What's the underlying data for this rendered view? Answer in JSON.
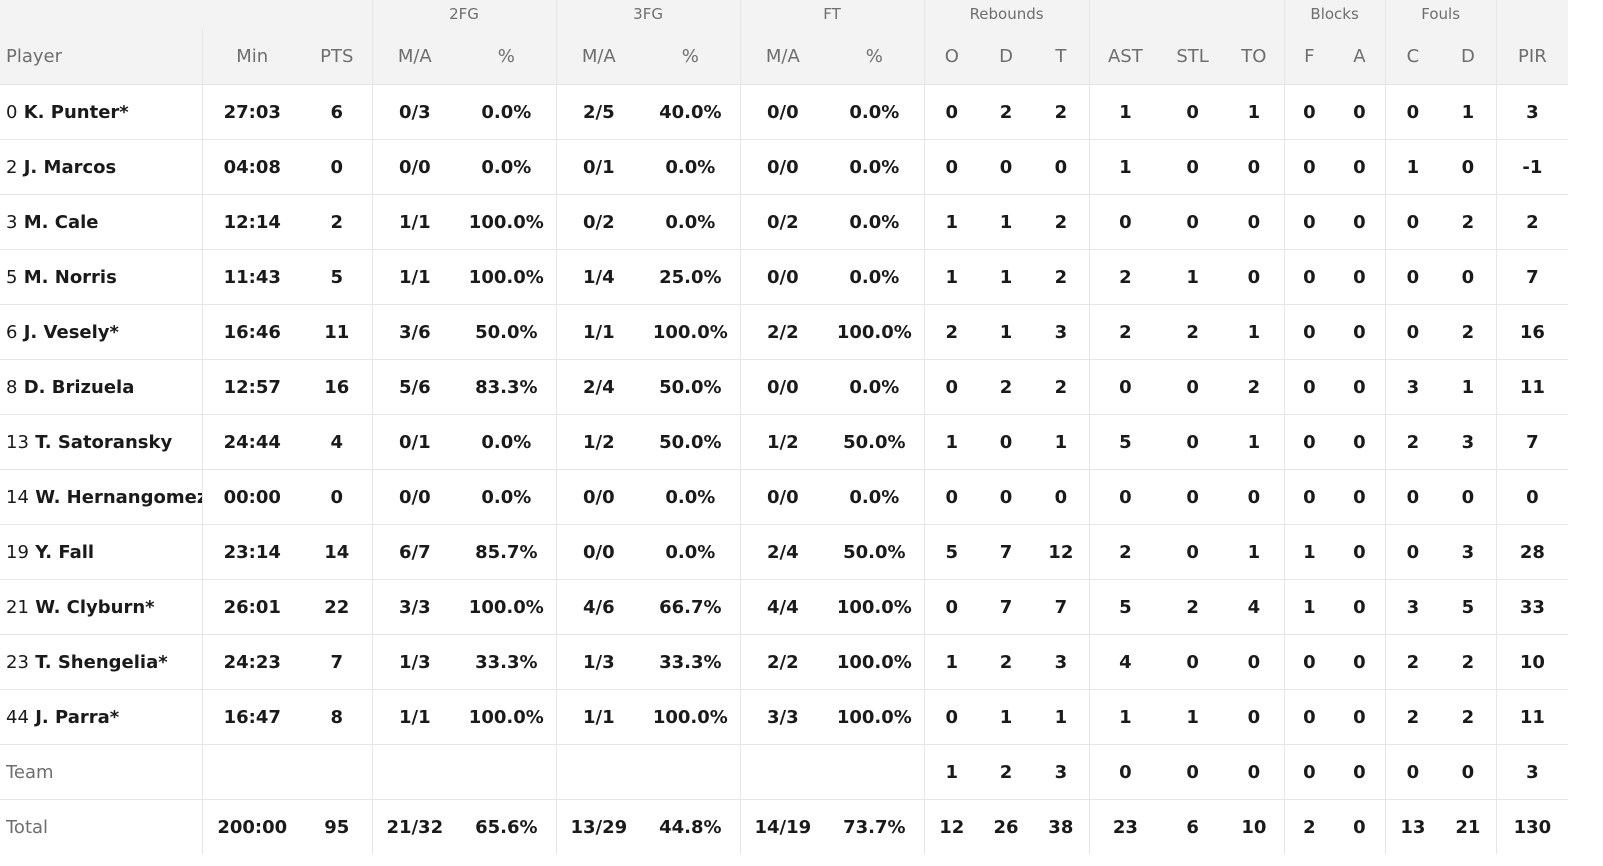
{
  "groups": {
    "fg2": "2FG",
    "fg3": "3FG",
    "ft": "FT",
    "rebounds": "Rebounds",
    "blocks": "Blocks",
    "fouls": "Fouls"
  },
  "headers": {
    "player": "Player",
    "min": "Min",
    "pts": "PTS",
    "fg2_ma": "M/A",
    "fg2_pct": "%",
    "fg3_ma": "M/A",
    "fg3_pct": "%",
    "ft_ma": "M/A",
    "ft_pct": "%",
    "reb_o": "O",
    "reb_d": "D",
    "reb_t": "T",
    "ast": "AST",
    "stl": "STL",
    "to": "TO",
    "blk_f": "F",
    "blk_a": "A",
    "foul_c": "C",
    "foul_d": "D",
    "pir": "PIR"
  },
  "rows": [
    {
      "num": "0",
      "name": "K. Punter*",
      "min": "27:03",
      "pts": "6",
      "fg2_ma": "0/3",
      "fg2_pct": "0.0%",
      "fg3_ma": "2/5",
      "fg3_pct": "40.0%",
      "ft_ma": "0/0",
      "ft_pct": "0.0%",
      "reb_o": "0",
      "reb_d": "2",
      "reb_t": "2",
      "ast": "1",
      "stl": "0",
      "to": "1",
      "blk_f": "0",
      "blk_a": "0",
      "foul_c": "0",
      "foul_d": "1",
      "pir": "3"
    },
    {
      "num": "2",
      "name": "J. Marcos",
      "min": "04:08",
      "pts": "0",
      "fg2_ma": "0/0",
      "fg2_pct": "0.0%",
      "fg3_ma": "0/1",
      "fg3_pct": "0.0%",
      "ft_ma": "0/0",
      "ft_pct": "0.0%",
      "reb_o": "0",
      "reb_d": "0",
      "reb_t": "0",
      "ast": "1",
      "stl": "0",
      "to": "0",
      "blk_f": "0",
      "blk_a": "0",
      "foul_c": "1",
      "foul_d": "0",
      "pir": "-1"
    },
    {
      "num": "3",
      "name": "M. Cale",
      "min": "12:14",
      "pts": "2",
      "fg2_ma": "1/1",
      "fg2_pct": "100.0%",
      "fg3_ma": "0/2",
      "fg3_pct": "0.0%",
      "ft_ma": "0/2",
      "ft_pct": "0.0%",
      "reb_o": "1",
      "reb_d": "1",
      "reb_t": "2",
      "ast": "0",
      "stl": "0",
      "to": "0",
      "blk_f": "0",
      "blk_a": "0",
      "foul_c": "0",
      "foul_d": "2",
      "pir": "2"
    },
    {
      "num": "5",
      "name": "M. Norris",
      "min": "11:43",
      "pts": "5",
      "fg2_ma": "1/1",
      "fg2_pct": "100.0%",
      "fg3_ma": "1/4",
      "fg3_pct": "25.0%",
      "ft_ma": "0/0",
      "ft_pct": "0.0%",
      "reb_o": "1",
      "reb_d": "1",
      "reb_t": "2",
      "ast": "2",
      "stl": "1",
      "to": "0",
      "blk_f": "0",
      "blk_a": "0",
      "foul_c": "0",
      "foul_d": "0",
      "pir": "7"
    },
    {
      "num": "6",
      "name": "J. Vesely*",
      "min": "16:46",
      "pts": "11",
      "fg2_ma": "3/6",
      "fg2_pct": "50.0%",
      "fg3_ma": "1/1",
      "fg3_pct": "100.0%",
      "ft_ma": "2/2",
      "ft_pct": "100.0%",
      "reb_o": "2",
      "reb_d": "1",
      "reb_t": "3",
      "ast": "2",
      "stl": "2",
      "to": "1",
      "blk_f": "0",
      "blk_a": "0",
      "foul_c": "0",
      "foul_d": "2",
      "pir": "16"
    },
    {
      "num": "8",
      "name": "D. Brizuela",
      "min": "12:57",
      "pts": "16",
      "fg2_ma": "5/6",
      "fg2_pct": "83.3%",
      "fg3_ma": "2/4",
      "fg3_pct": "50.0%",
      "ft_ma": "0/0",
      "ft_pct": "0.0%",
      "reb_o": "0",
      "reb_d": "2",
      "reb_t": "2",
      "ast": "0",
      "stl": "0",
      "to": "2",
      "blk_f": "0",
      "blk_a": "0",
      "foul_c": "3",
      "foul_d": "1",
      "pir": "11"
    },
    {
      "num": "13",
      "name": "T. Satoransky",
      "min": "24:44",
      "pts": "4",
      "fg2_ma": "0/1",
      "fg2_pct": "0.0%",
      "fg3_ma": "1/2",
      "fg3_pct": "50.0%",
      "ft_ma": "1/2",
      "ft_pct": "50.0%",
      "reb_o": "1",
      "reb_d": "0",
      "reb_t": "1",
      "ast": "5",
      "stl": "0",
      "to": "1",
      "blk_f": "0",
      "blk_a": "0",
      "foul_c": "2",
      "foul_d": "3",
      "pir": "7"
    },
    {
      "num": "14",
      "name": "W. Hernangomez",
      "min": "00:00",
      "pts": "0",
      "fg2_ma": "0/0",
      "fg2_pct": "0.0%",
      "fg3_ma": "0/0",
      "fg3_pct": "0.0%",
      "ft_ma": "0/0",
      "ft_pct": "0.0%",
      "reb_o": "0",
      "reb_d": "0",
      "reb_t": "0",
      "ast": "0",
      "stl": "0",
      "to": "0",
      "blk_f": "0",
      "blk_a": "0",
      "foul_c": "0",
      "foul_d": "0",
      "pir": "0"
    },
    {
      "num": "19",
      "name": "Y. Fall",
      "min": "23:14",
      "pts": "14",
      "fg2_ma": "6/7",
      "fg2_pct": "85.7%",
      "fg3_ma": "0/0",
      "fg3_pct": "0.0%",
      "ft_ma": "2/4",
      "ft_pct": "50.0%",
      "reb_o": "5",
      "reb_d": "7",
      "reb_t": "12",
      "ast": "2",
      "stl": "0",
      "to": "1",
      "blk_f": "1",
      "blk_a": "0",
      "foul_c": "0",
      "foul_d": "3",
      "pir": "28"
    },
    {
      "num": "21",
      "name": "W. Clyburn*",
      "min": "26:01",
      "pts": "22",
      "fg2_ma": "3/3",
      "fg2_pct": "100.0%",
      "fg3_ma": "4/6",
      "fg3_pct": "66.7%",
      "ft_ma": "4/4",
      "ft_pct": "100.0%",
      "reb_o": "0",
      "reb_d": "7",
      "reb_t": "7",
      "ast": "5",
      "stl": "2",
      "to": "4",
      "blk_f": "1",
      "blk_a": "0",
      "foul_c": "3",
      "foul_d": "5",
      "pir": "33"
    },
    {
      "num": "23",
      "name": "T. Shengelia*",
      "min": "24:23",
      "pts": "7",
      "fg2_ma": "1/3",
      "fg2_pct": "33.3%",
      "fg3_ma": "1/3",
      "fg3_pct": "33.3%",
      "ft_ma": "2/2",
      "ft_pct": "100.0%",
      "reb_o": "1",
      "reb_d": "2",
      "reb_t": "3",
      "ast": "4",
      "stl": "0",
      "to": "0",
      "blk_f": "0",
      "blk_a": "0",
      "foul_c": "2",
      "foul_d": "2",
      "pir": "10"
    },
    {
      "num": "44",
      "name": "J. Parra*",
      "min": "16:47",
      "pts": "8",
      "fg2_ma": "1/1",
      "fg2_pct": "100.0%",
      "fg3_ma": "1/1",
      "fg3_pct": "100.0%",
      "ft_ma": "3/3",
      "ft_pct": "100.0%",
      "reb_o": "0",
      "reb_d": "1",
      "reb_t": "1",
      "ast": "1",
      "stl": "1",
      "to": "0",
      "blk_f": "0",
      "blk_a": "0",
      "foul_c": "2",
      "foul_d": "2",
      "pir": "11"
    }
  ],
  "team": {
    "label": "Team",
    "reb_o": "1",
    "reb_d": "2",
    "reb_t": "3",
    "ast": "0",
    "stl": "0",
    "to": "0",
    "blk_f": "0",
    "blk_a": "0",
    "foul_c": "0",
    "foul_d": "0",
    "pir": "3"
  },
  "total": {
    "label": "Total",
    "min": "200:00",
    "pts": "95",
    "fg2_ma": "21/32",
    "fg2_pct": "65.6%",
    "fg3_ma": "13/29",
    "fg3_pct": "44.8%",
    "ft_ma": "14/19",
    "ft_pct": "73.7%",
    "reb_o": "12",
    "reb_d": "26",
    "reb_t": "38",
    "ast": "23",
    "stl": "6",
    "to": "10",
    "blk_f": "2",
    "blk_a": "0",
    "foul_c": "13",
    "foul_d": "21",
    "pir": "130"
  },
  "colors": {
    "header_bg": "#f3f3f3",
    "header_text": "#6e6e6e",
    "body_text": "#1a1a1a",
    "row_border": "#e6e6e6"
  }
}
